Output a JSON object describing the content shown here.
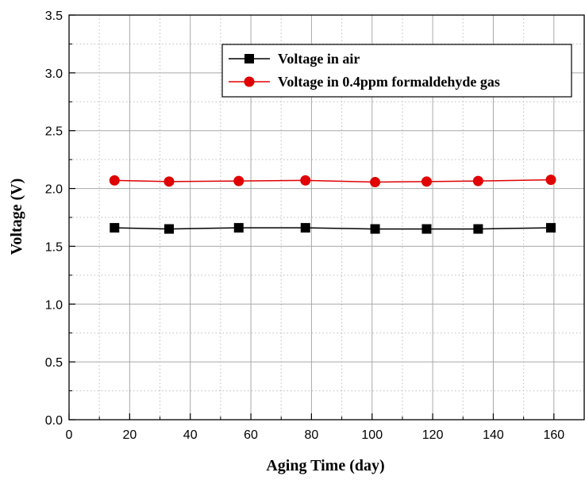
{
  "chart_data": {
    "type": "line",
    "xlabel": "Aging Time (day)",
    "ylabel": "Voltage (V)",
    "xlim": [
      0,
      170
    ],
    "ylim": [
      0,
      3.5
    ],
    "xticks": [
      0,
      20,
      40,
      60,
      80,
      100,
      120,
      140,
      160
    ],
    "xtick_labels": [
      "0",
      "20",
      "40",
      "60",
      "80",
      "100",
      "120",
      "140",
      "160"
    ],
    "yticks": [
      0.0,
      0.5,
      1.0,
      1.5,
      2.0,
      2.5,
      3.0,
      3.5
    ],
    "ytick_labels": [
      "0.0",
      "0.5",
      "1.0",
      "1.5",
      "2.0",
      "2.5",
      "3.0",
      "3.5"
    ],
    "grid": true,
    "legend_position": "top-right",
    "x": [
      15,
      33,
      56,
      78,
      101,
      118,
      135,
      159
    ],
    "series": [
      {
        "name": "Voltage in air",
        "color": "#000000",
        "marker": "square",
        "values": [
          1.66,
          1.65,
          1.66,
          1.66,
          1.65,
          1.65,
          1.65,
          1.66
        ]
      },
      {
        "name": "Voltage in 0.4ppm formaldehyde gas",
        "color": "#e00000",
        "marker": "circle",
        "values": [
          2.07,
          2.06,
          2.065,
          2.07,
          2.055,
          2.06,
          2.065,
          2.075
        ]
      }
    ]
  }
}
